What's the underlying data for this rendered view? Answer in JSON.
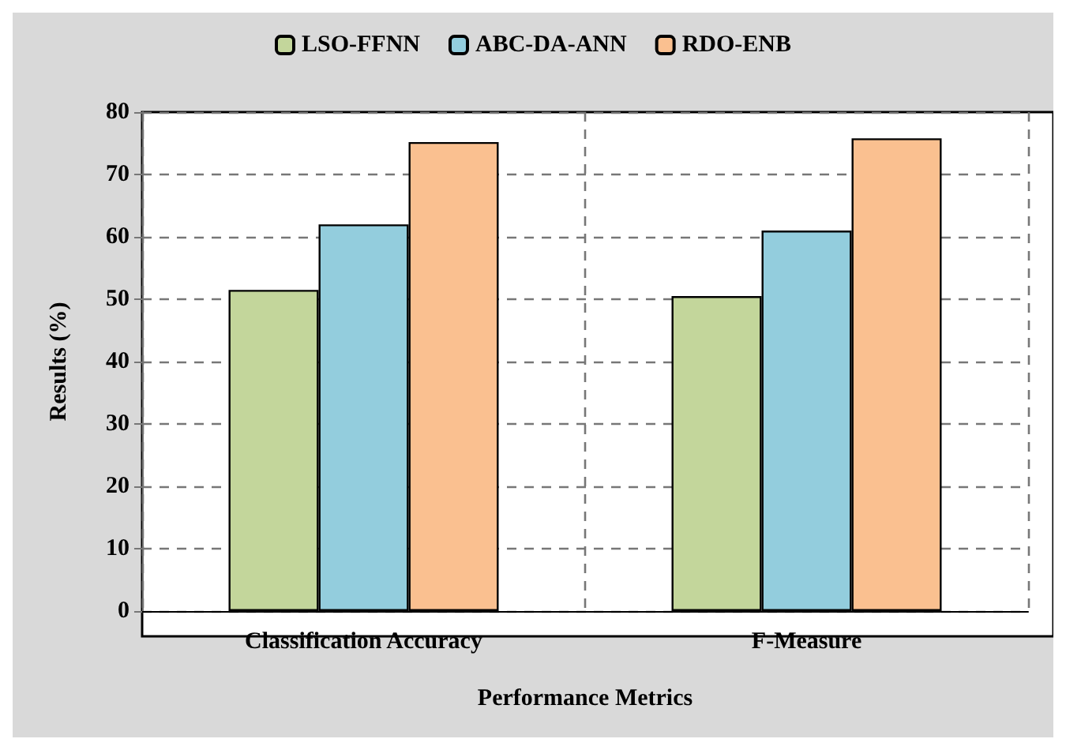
{
  "chart_data": {
    "type": "bar",
    "xlabel": "Performance Metrics",
    "ylabel": "Results (%)",
    "categories": [
      "Classification Accuracy",
      "F-Measure"
    ],
    "series": [
      {
        "name": "LSO-FFNN",
        "color": "#c3d69b",
        "values": [
          51.5,
          50.5
        ]
      },
      {
        "name": "ABC-DA-ANN",
        "color": "#93cddd",
        "values": [
          62,
          61
        ]
      },
      {
        "name": "RDO-ENB",
        "color": "#fac090",
        "values": [
          75.2,
          75.8
        ]
      }
    ],
    "ylim": [
      0,
      80
    ],
    "yticks": [
      0,
      10,
      20,
      30,
      40,
      50,
      60,
      70,
      80
    ],
    "grid": true,
    "legend": "top"
  }
}
